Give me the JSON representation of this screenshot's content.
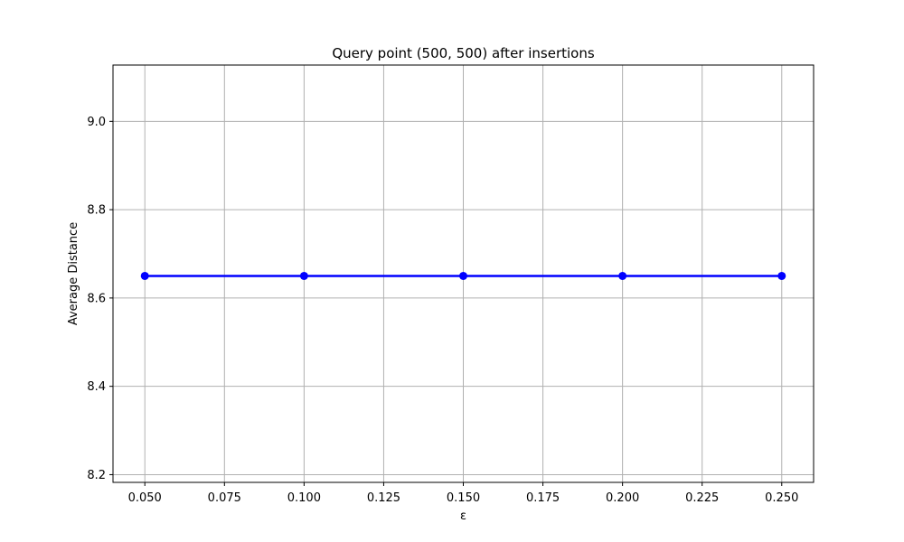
{
  "chart_data": {
    "type": "line",
    "title": "Query point (500, 500) after insertions",
    "xlabel": "ε",
    "ylabel": "Average Distance",
    "xlim": [
      0.04,
      0.26
    ],
    "ylim": [
      8.1825,
      9.1275
    ],
    "x_ticks": [
      "0.050",
      "0.075",
      "0.100",
      "0.125",
      "0.150",
      "0.175",
      "0.200",
      "0.225",
      "0.250"
    ],
    "x_tick_values": [
      0.05,
      0.075,
      0.1,
      0.125,
      0.15,
      0.175,
      0.2,
      0.225,
      0.25
    ],
    "y_ticks": [
      "8.2",
      "8.4",
      "8.6",
      "8.8",
      "9.0"
    ],
    "y_tick_values": [
      8.2,
      8.4,
      8.6,
      8.8,
      9.0
    ],
    "grid": true,
    "series": [
      {
        "color": "#0000ff",
        "marker": "circle",
        "x": [
          0.05,
          0.1,
          0.15,
          0.2,
          0.25
        ],
        "y": [
          8.65,
          8.65,
          8.65,
          8.65,
          8.65
        ]
      }
    ]
  }
}
